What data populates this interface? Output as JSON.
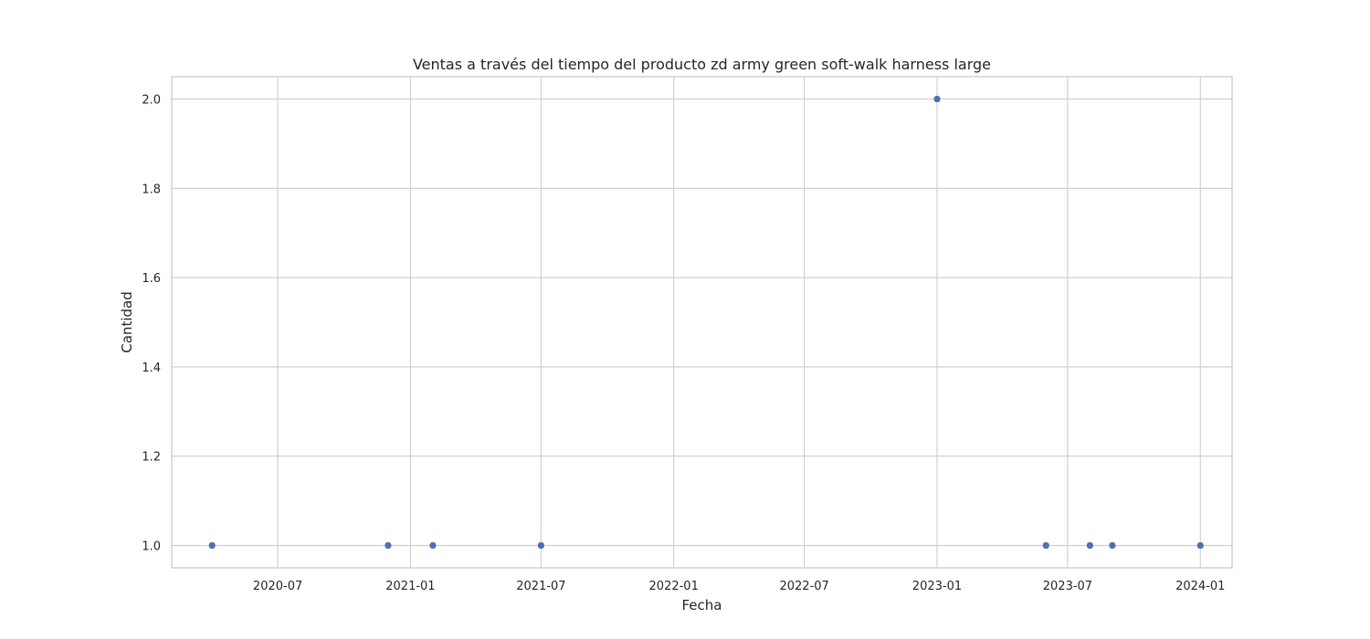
{
  "chart_data": {
    "type": "scatter",
    "title": "Ventas a través del tiempo del producto zd army green soft-walk harness large",
    "xlabel": "Fecha",
    "ylabel": "Cantidad",
    "x_type": "date",
    "xlim": [
      "2020-02-05",
      "2024-02-14"
    ],
    "ylim": [
      0.95,
      2.05
    ],
    "x_ticks": [
      "2020-07",
      "2021-01",
      "2021-07",
      "2022-01",
      "2022-07",
      "2023-01",
      "2023-07",
      "2024-01"
    ],
    "y_ticks": [
      "1.0",
      "1.2",
      "1.4",
      "1.6",
      "1.8",
      "2.0"
    ],
    "grid": true,
    "marker_color": "#4c72b0",
    "points": [
      {
        "x": "2020-04-01",
        "y": 1
      },
      {
        "x": "2020-12-01",
        "y": 1
      },
      {
        "x": "2021-02-01",
        "y": 1
      },
      {
        "x": "2021-07-01",
        "y": 1
      },
      {
        "x": "2023-01-01",
        "y": 2
      },
      {
        "x": "2023-06-01",
        "y": 1
      },
      {
        "x": "2023-08-01",
        "y": 1
      },
      {
        "x": "2023-09-01",
        "y": 1
      },
      {
        "x": "2024-01-01",
        "y": 1
      }
    ]
  }
}
